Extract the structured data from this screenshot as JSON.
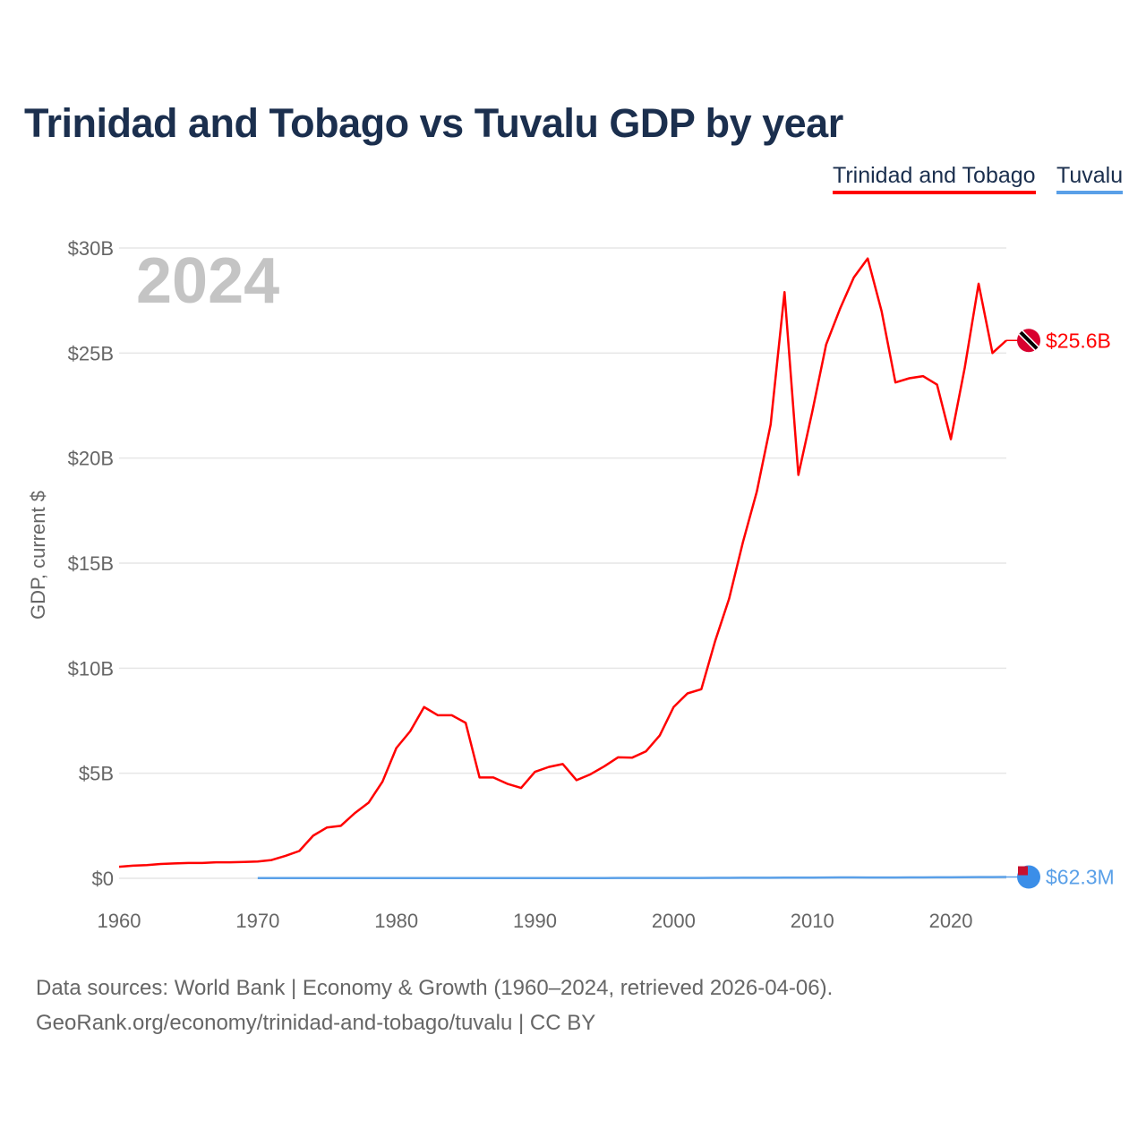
{
  "title": "Trinidad and Tobago vs Tuvalu GDP by year",
  "footer": {
    "line1": "Data sources: World Bank | Economy & Growth (1960–2024, retrieved 2026-04-06).",
    "line2": "GeoRank.org/economy/trinidad-and-tobago/tuvalu | CC BY"
  },
  "chart_data": {
    "type": "line",
    "title": "Trinidad and Tobago vs Tuvalu GDP by year",
    "ylabel": "GDP, current $",
    "xlabel": "",
    "year_label": "2024",
    "xlim": [
      1960,
      2024
    ],
    "ylim": [
      0,
      30
    ],
    "x_ticks": [
      "1960",
      "1970",
      "1980",
      "1990",
      "2000",
      "2010",
      "2020"
    ],
    "y_ticks": [
      "$0",
      "$5B",
      "$10B",
      "$15B",
      "$20B",
      "$25B",
      "$30B"
    ],
    "legend_placement": "top-right",
    "grid": true,
    "series": [
      {
        "name": "Trinidad and Tobago",
        "color": "#ff0000",
        "end_label": "$25.6B",
        "start_year": 1960,
        "values": [
          0.55,
          0.6,
          0.63,
          0.68,
          0.71,
          0.73,
          0.73,
          0.76,
          0.76,
          0.78,
          0.8,
          0.87,
          1.07,
          1.3,
          2.03,
          2.42,
          2.5,
          3.1,
          3.6,
          4.6,
          6.2,
          7.0,
          8.15,
          7.76,
          7.76,
          7.4,
          4.8,
          4.8,
          4.5,
          4.3,
          5.07,
          5.3,
          5.44,
          4.67,
          4.95,
          5.33,
          5.76,
          5.74,
          6.04,
          6.8,
          8.15,
          8.8,
          9.0,
          11.3,
          13.3,
          16.0,
          18.4,
          21.6,
          27.9,
          19.2,
          22.2,
          25.4,
          27.1,
          28.6,
          29.5,
          27.0,
          23.6,
          23.8,
          23.9,
          23.5,
          20.9,
          24.3,
          28.3,
          25.0,
          25.6
        ]
      },
      {
        "name": "Tuvalu",
        "color": "#5aa0e8",
        "end_label": "$62.3M",
        "start_year": 1970,
        "values": [
          0.01,
          0.01,
          0.01,
          0.01,
          0.01,
          0.01,
          0.01,
          0.01,
          0.01,
          0.01,
          0.01,
          0.01,
          0.01,
          0.01,
          0.01,
          0.01,
          0.01,
          0.01,
          0.012,
          0.012,
          0.012,
          0.012,
          0.012,
          0.012,
          0.012,
          0.012,
          0.015,
          0.015,
          0.015,
          0.015,
          0.015,
          0.015,
          0.018,
          0.02,
          0.022,
          0.025,
          0.025,
          0.028,
          0.03,
          0.03,
          0.032,
          0.035,
          0.04,
          0.04,
          0.038,
          0.036,
          0.037,
          0.04,
          0.044,
          0.047,
          0.048,
          0.055,
          0.058,
          0.06,
          0.0623
        ]
      }
    ]
  }
}
